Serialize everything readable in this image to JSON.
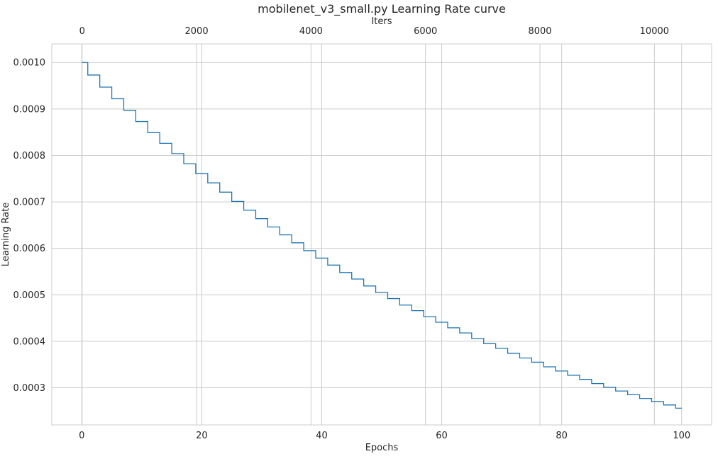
{
  "chart_data": {
    "type": "line",
    "title": "mobilenet_v3_small.py Learning Rate curve",
    "xlabel": "Epochs",
    "ylabel": "Learning Rate",
    "x2label": "Iters",
    "xlim": [
      -5,
      105
    ],
    "ylim": [
      0.00022,
      0.00104
    ],
    "x2lim": [
      -530,
      11000
    ],
    "xticks": [
      0,
      20,
      40,
      60,
      80,
      100
    ],
    "xtick_labels": [
      "0",
      "20",
      "40",
      "60",
      "80",
      "100"
    ],
    "x2ticks": [
      0,
      2000,
      4000,
      6000,
      8000,
      10000
    ],
    "x2tick_labels": [
      "0",
      "2000",
      "4000",
      "6000",
      "8000",
      "10000"
    ],
    "yticks": [
      0.0003,
      0.0004,
      0.0005,
      0.0006,
      0.0007,
      0.0008,
      0.0009,
      0.001
    ],
    "ytick_labels": [
      "0.0003",
      "0.0004",
      "0.0005",
      "0.0006",
      "0.0007",
      "0.0008",
      "0.0009",
      "0.0010"
    ],
    "grid": true,
    "colors": {
      "series": "#1f77b4",
      "grid": "#cccccc",
      "background": "#ffffff"
    },
    "series": [
      {
        "style": "step-post",
        "x": [
          0,
          1,
          3,
          5,
          7,
          9,
          11,
          13,
          15,
          17,
          19,
          21,
          23,
          25,
          27,
          29,
          31,
          33,
          35,
          37,
          39,
          41,
          43,
          45,
          47,
          49,
          51,
          53,
          55,
          57,
          59,
          61,
          63,
          65,
          67,
          69,
          71,
          73,
          75,
          77,
          79,
          81,
          83,
          85,
          87,
          89,
          91,
          93,
          95,
          97,
          99,
          100
        ],
        "y": [
          0.001,
          0.000973,
          0.000947,
          0.000922,
          0.000897,
          0.000873,
          0.000849,
          0.000826,
          0.000804,
          0.000782,
          0.000761,
          0.000741,
          0.000721,
          0.000701,
          0.000682,
          0.000664,
          0.000646,
          0.000629,
          0.000612,
          0.000595,
          0.000579,
          0.000564,
          0.000548,
          0.000534,
          0.000519,
          0.000505,
          0.000492,
          0.000478,
          0.000466,
          0.000453,
          0.000441,
          0.000429,
          0.000418,
          0.000406,
          0.000395,
          0.000385,
          0.000374,
          0.000364,
          0.000355,
          0.000345,
          0.000336,
          0.000327,
          0.000318,
          0.000309,
          0.000301,
          0.000293,
          0.000285,
          0.000277,
          0.00027,
          0.000263,
          0.000256,
          0.000256
        ]
      }
    ]
  }
}
